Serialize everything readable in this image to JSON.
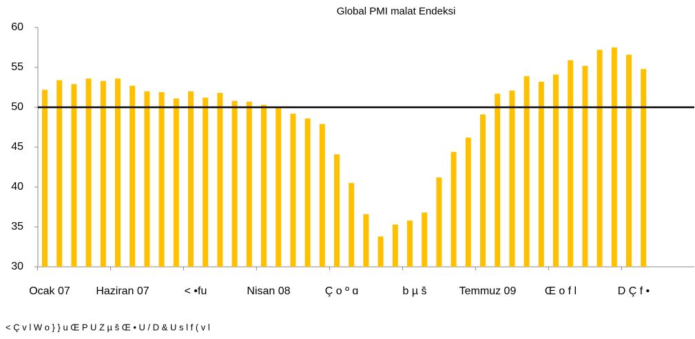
{
  "chart_data": {
    "type": "bar",
    "title": "Global PMI  malat Endeksi",
    "categories": [
      "Ocak 07",
      null,
      null,
      null,
      null,
      "Haziran 07",
      null,
      null,
      null,
      null,
      "< •fu",
      null,
      null,
      null,
      null,
      "Nisan 08",
      null,
      null,
      null,
      null,
      "Ç o º ɑ",
      null,
      null,
      null,
      null,
      "b µ š",
      null,
      null,
      null,
      null,
      "Temmuz 09",
      null,
      null,
      null,
      null,
      "Œ o f l",
      null,
      null,
      null,
      null,
      "D Ç f •",
      null
    ],
    "values": [
      52.2,
      53.4,
      52.9,
      53.6,
      53.3,
      53.6,
      52.7,
      52.0,
      51.9,
      51.1,
      52.0,
      51.2,
      51.8,
      50.8,
      50.7,
      50.3,
      50.0,
      49.2,
      48.6,
      47.9,
      44.1,
      40.5,
      36.6,
      33.8,
      35.3,
      35.8,
      36.8,
      41.2,
      44.4,
      46.2,
      49.1,
      51.7,
      52.1,
      53.9,
      53.2,
      54.1,
      55.9,
      55.2,
      57.2,
      57.5,
      56.6,
      54.8
    ],
    "color": "#ffc000",
    "ylim": [
      30,
      60
    ],
    "yticks": [
      30,
      35,
      40,
      45,
      50,
      55,
      60
    ],
    "reference_line": 50,
    "source": "< Ç v l W  o } } u  Œ P U Z µ š Œ • U / D & U s l f (  v l"
  }
}
